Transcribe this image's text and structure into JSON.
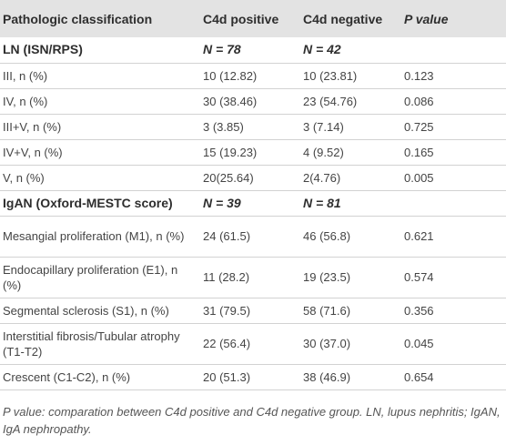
{
  "table": {
    "headers": [
      "Pathologic classification",
      "C4d positive",
      "C4d negative",
      "P value"
    ],
    "sections": [
      {
        "label": "LN (ISN/RPS)",
        "n_pos": "N = 78",
        "n_neg": "N = 42",
        "rows": [
          {
            "label": "III, n (%)",
            "pos": "10 (12.82)",
            "neg": "10 (23.81)",
            "p": "0.123"
          },
          {
            "label": "IV, n (%)",
            "pos": "30 (38.46)",
            "neg": "23 (54.76)",
            "p": "0.086"
          },
          {
            "label": "III+V, n (%)",
            "pos": "3 (3.85)",
            "neg": "3 (7.14)",
            "p": "0.725"
          },
          {
            "label": "IV+V, n (%)",
            "pos": "15 (19.23)",
            "neg": "4 (9.52)",
            "p": "0.165"
          },
          {
            "label": "V, n (%)",
            "pos": "20(25.64)",
            "neg": "2(4.76)",
            "p": "0.005"
          }
        ]
      },
      {
        "label": "IgAN (Oxford-MESTC score)",
        "n_pos": "N = 39",
        "n_neg": "N = 81",
        "rows": [
          {
            "label": "Mesangial proliferation (M1), n (%)",
            "pos": "24 (61.5)",
            "neg": "46 (56.8)",
            "p": "0.621"
          },
          {
            "label": "Endocapillary proliferation (E1), n (%)",
            "pos": "11 (28.2)",
            "neg": "19 (23.5)",
            "p": "0.574"
          },
          {
            "label": "Segmental sclerosis (S1), n (%)",
            "pos": "31 (79.5)",
            "neg": "58 (71.6)",
            "p": "0.356"
          },
          {
            "label": "Interstitial fibrosis/Tubular atrophy (T1-T2)",
            "pos": "22 (56.4)",
            "neg": "30 (37.0)",
            "p": "0.045"
          },
          {
            "label": "Crescent (C1-C2), n (%)",
            "pos": "20 (51.3)",
            "neg": "38 (46.9)",
            "p": "0.654"
          }
        ]
      }
    ]
  },
  "footnote": "P value: comparation between C4d positive and C4d negative group. LN, lupus nephritis; IgAN, IgA nephropathy."
}
